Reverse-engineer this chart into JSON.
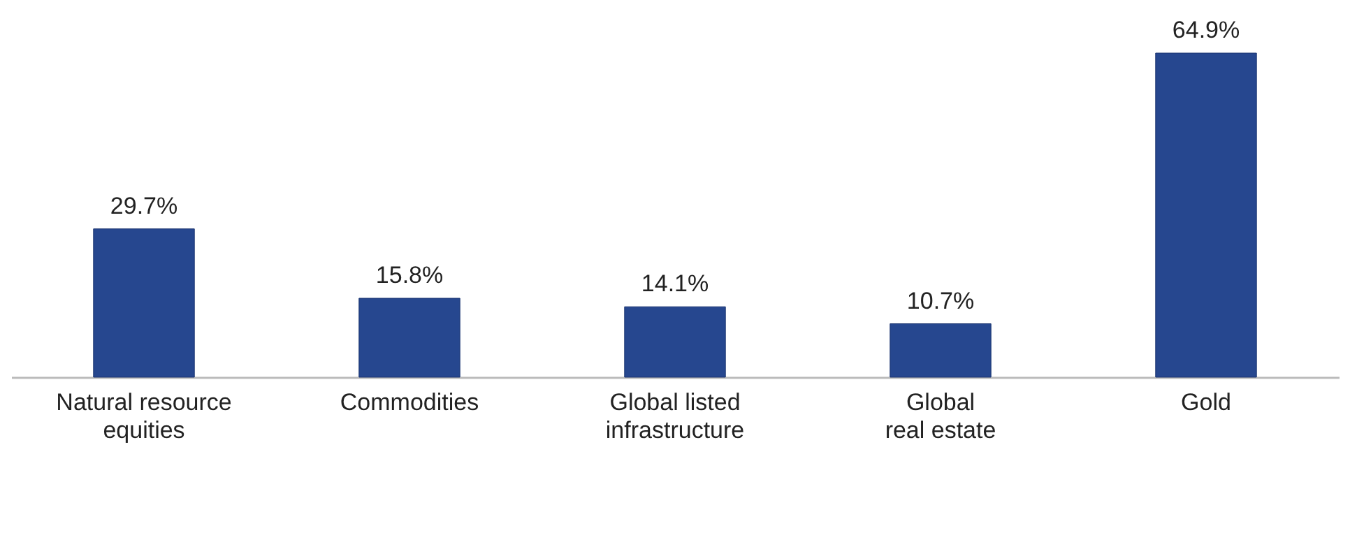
{
  "chart_data": {
    "type": "bar",
    "categories": [
      "Natural resource\nequities",
      "Commodities",
      "Global listed\ninfrastructure",
      "Global\nreal estate",
      "Gold"
    ],
    "values": [
      29.7,
      15.8,
      14.1,
      10.7,
      64.9
    ],
    "value_labels": [
      "29.7%",
      "15.8%",
      "14.1%",
      "10.7%",
      "64.9%"
    ],
    "color": "#26478f"
  }
}
